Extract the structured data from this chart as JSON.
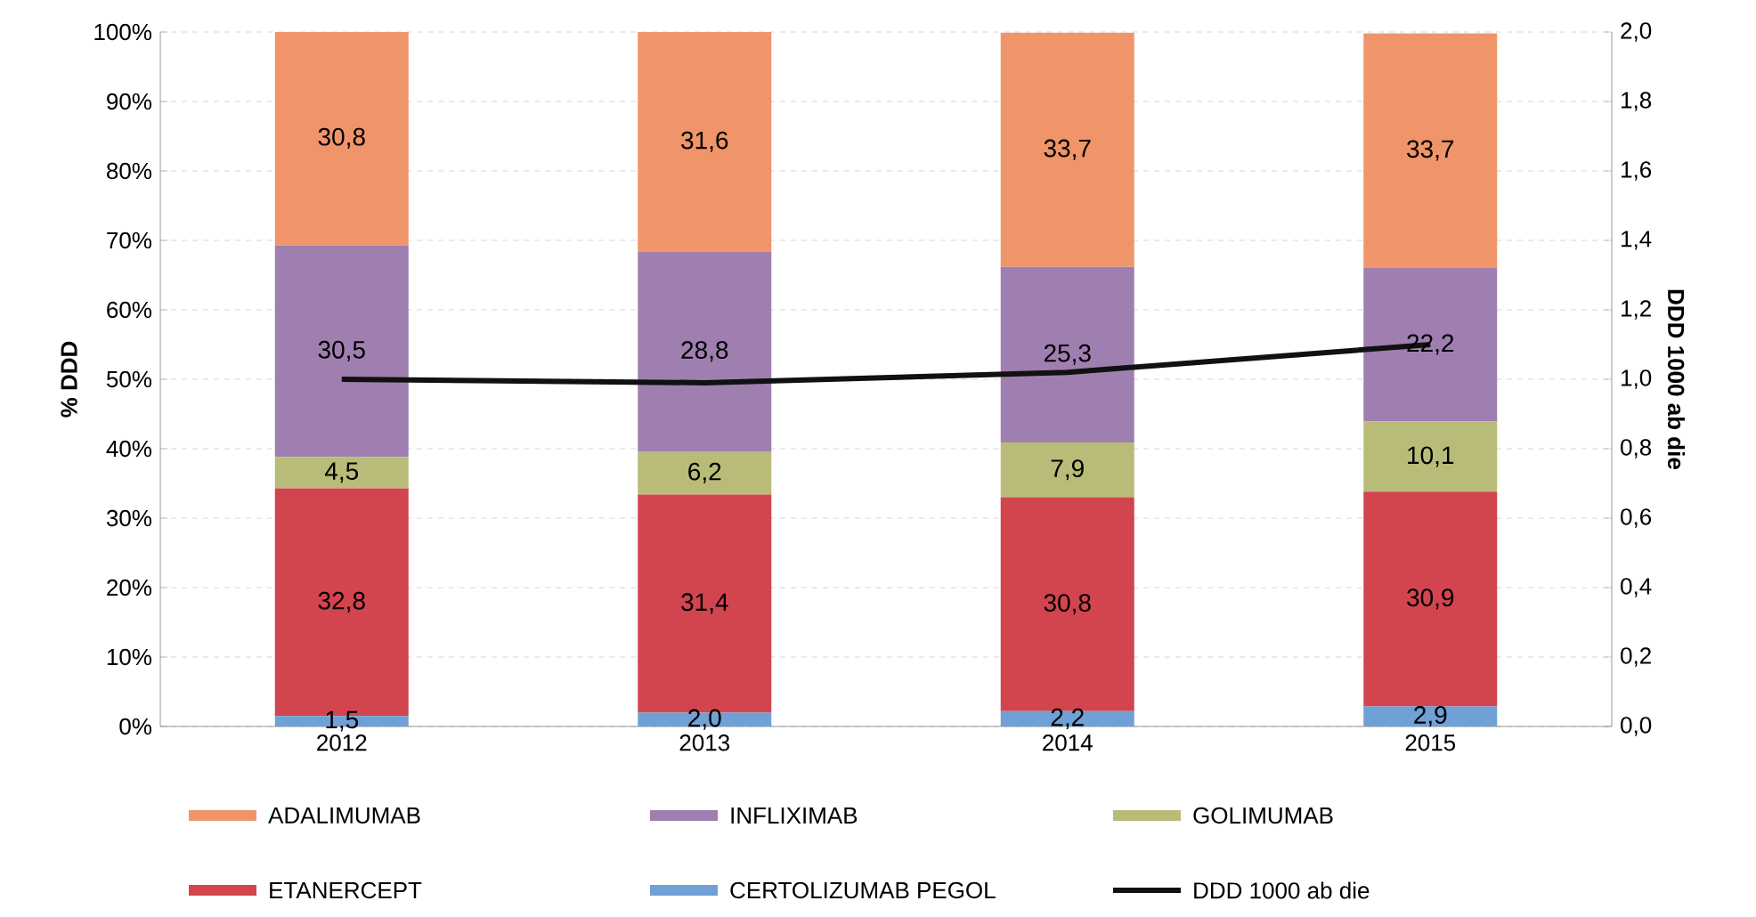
{
  "chart_data": {
    "type": "bar",
    "stacked": true,
    "categories": [
      "2012",
      "2013",
      "2014",
      "2015"
    ],
    "series": [
      {
        "name": "CERTOLIZUMAB PEGOL",
        "color": "#6fa0d6",
        "values": [
          1.5,
          2.0,
          2.2,
          2.9
        ],
        "value_labels": [
          "1,5",
          "2,0",
          "2,2",
          "2,9"
        ]
      },
      {
        "name": "ETANERCEPT",
        "color": "#d2454f",
        "values": [
          32.8,
          31.4,
          30.8,
          30.9
        ],
        "value_labels": [
          "32,8",
          "31,4",
          "30,8",
          "30,9"
        ]
      },
      {
        "name": "GOLIMUMAB",
        "color": "#b9bc78",
        "values": [
          4.5,
          6.2,
          7.9,
          10.1
        ],
        "value_labels": [
          "4,5",
          "6,2",
          "7,9",
          "10,1"
        ]
      },
      {
        "name": "INFLIXIMAB",
        "color": "#9f7fb0",
        "values": [
          30.5,
          28.8,
          25.3,
          22.2
        ],
        "value_labels": [
          "30,5",
          "28,8",
          "25,3",
          "22,2"
        ]
      },
      {
        "name": "ADALIMUMAB",
        "color": "#f0956a",
        "values": [
          30.8,
          31.6,
          33.7,
          33.7
        ],
        "value_labels": [
          "30,8",
          "31,6",
          "33,7",
          "33,7"
        ]
      },
      {
        "name": "DDD 1000 ab die",
        "type": "line",
        "axis": "y2",
        "line_style": "solid",
        "color": "#111111",
        "values": [
          1.0,
          0.99,
          1.02,
          1.1
        ]
      }
    ],
    "ylabel": "% DDD",
    "y2label": "DDD 1000 ab die",
    "ylim": [
      0,
      100
    ],
    "yticks": [
      {
        "value": 0,
        "label": "0%"
      },
      {
        "value": 10,
        "label": "10%"
      },
      {
        "value": 20,
        "label": "20%"
      },
      {
        "value": 30,
        "label": "30%"
      },
      {
        "value": 40,
        "label": "40%"
      },
      {
        "value": 50,
        "label": "50%"
      },
      {
        "value": 60,
        "label": "60%"
      },
      {
        "value": 70,
        "label": "70%"
      },
      {
        "value": 80,
        "label": "80%"
      },
      {
        "value": 90,
        "label": "90%"
      },
      {
        "value": 100,
        "label": "100%"
      }
    ],
    "y2lim": [
      0,
      2
    ],
    "y2ticks": [
      {
        "value": 0,
        "label": "0,0"
      },
      {
        "value": 0.2,
        "label": "0,2"
      },
      {
        "value": 0.4,
        "label": "0,4"
      },
      {
        "value": 0.6,
        "label": "0,6"
      },
      {
        "value": 0.8,
        "label": "0,8"
      },
      {
        "value": 1.0,
        "label": "1,0"
      },
      {
        "value": 1.2,
        "label": "1,2"
      },
      {
        "value": 1.4,
        "label": "1,4"
      },
      {
        "value": 1.6,
        "label": "1,6"
      },
      {
        "value": 1.8,
        "label": "1,8"
      },
      {
        "value": 2.0,
        "label": "2,0"
      }
    ],
    "grid": "y",
    "legend": "bottom"
  }
}
